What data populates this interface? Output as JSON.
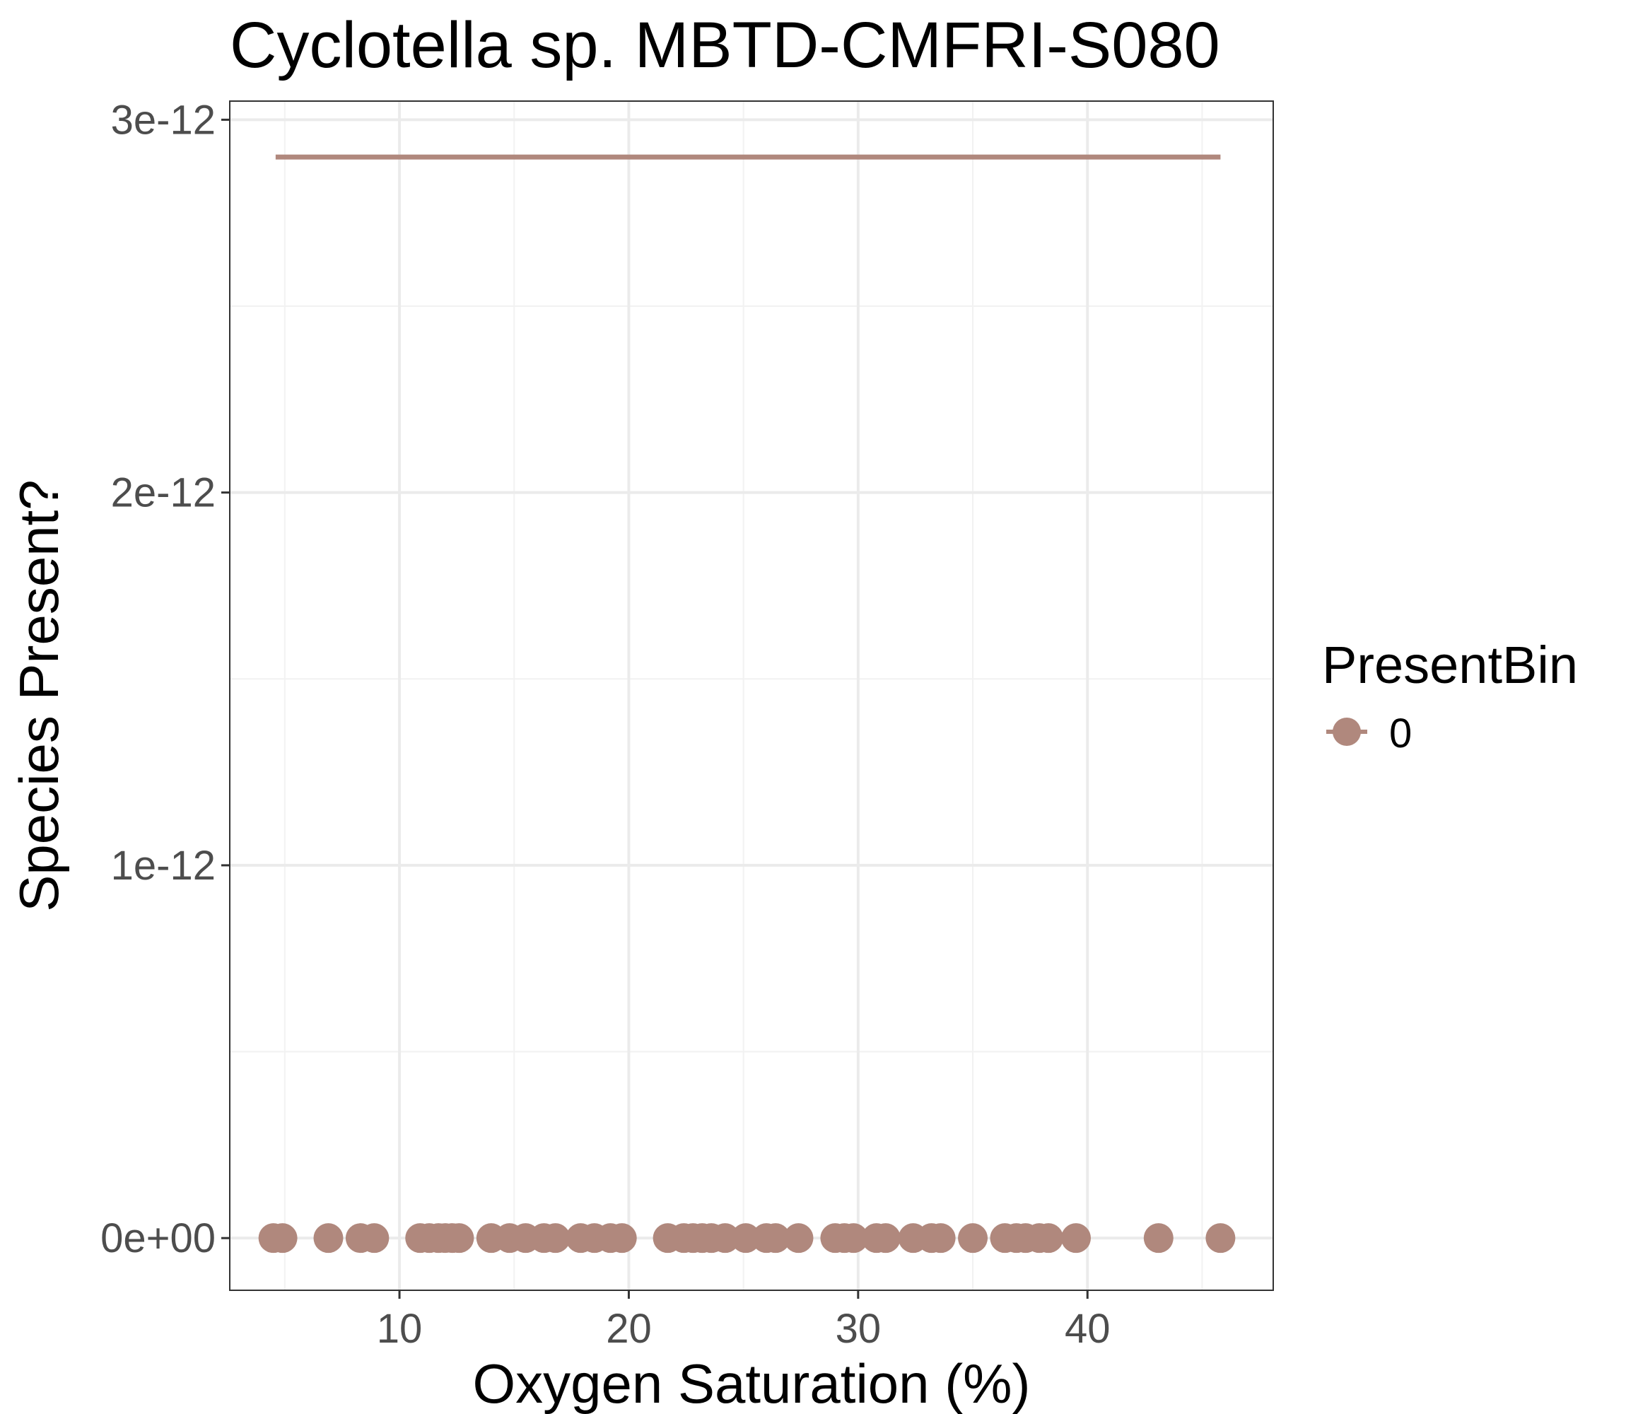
{
  "chart_data": {
    "type": "scatter",
    "title": "Cyclotella sp. MBTD-CMFRI-S080",
    "xlabel": "Oxygen Saturation (%)",
    "ylabel": "Species Present?",
    "xlim": [
      2.6,
      48.1
    ],
    "ylim": [
      -1.4e-13,
      3.05e-12
    ],
    "x_ticks": [
      10,
      20,
      30,
      40
    ],
    "x_tick_labels": [
      "10",
      "20",
      "30",
      "40"
    ],
    "y_ticks": [
      0,
      1e-12,
      2e-12,
      3e-12
    ],
    "y_tick_labels": [
      "0e+00",
      "1e-12",
      "2e-12",
      "3e-12"
    ],
    "grid": true,
    "legend": {
      "title": "PresentBin",
      "position": "right",
      "entries": [
        "0"
      ]
    },
    "series": [
      {
        "name": "0",
        "color": "#b0887d",
        "points_x": [
          4.5,
          4.9,
          6.9,
          8.3,
          8.9,
          10.9,
          11.3,
          11.7,
          12.0,
          12.3,
          12.6,
          14.0,
          14.8,
          15.5,
          16.3,
          16.8,
          17.9,
          18.5,
          19.2,
          19.7,
          21.7,
          22.4,
          22.8,
          23.2,
          23.6,
          24.2,
          25.1,
          26.0,
          26.4,
          27.4,
          29.0,
          29.4,
          29.8,
          30.8,
          31.2,
          32.4,
          33.2,
          33.6,
          35.0,
          36.4,
          36.9,
          37.3,
          37.9,
          38.3,
          39.5,
          43.1,
          45.8
        ],
        "points_y": [
          0,
          0,
          0,
          0,
          0,
          0,
          0,
          0,
          0,
          0,
          0,
          0,
          0,
          0,
          0,
          0,
          0,
          0,
          0,
          0,
          0,
          0,
          0,
          0,
          0,
          0,
          0,
          0,
          0,
          0,
          0,
          0,
          0,
          0,
          0,
          0,
          0,
          0,
          0,
          0,
          0,
          0,
          0,
          0,
          0,
          0,
          0
        ],
        "fit_line": {
          "x": [
            4.6,
            45.8
          ],
          "y": [
            2.9e-12,
            2.9e-12
          ]
        }
      }
    ]
  }
}
